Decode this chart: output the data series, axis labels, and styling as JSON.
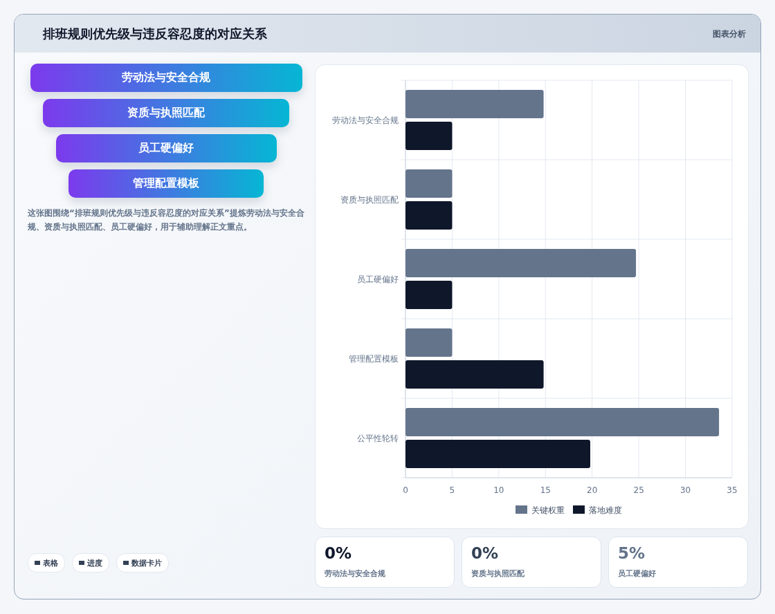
{
  "chart_data": [
    {
      "type": "other",
      "title": "排班规则优先级与违反容忍度的对应关系",
      "categories": [
        "劳动法与安全合规",
        "资质与执照匹配",
        "员工硬偏好",
        "管理配置模板"
      ],
      "annotations": [
        "图表分析",
        "这张图围绕“排班规则优先级与违反容忍度的对应关系”提炼劳动法与安全合规、资质与执照匹配、员工硬偏好，用于辅助理解正文重点。",
        "表格",
        "进度",
        "数据卡片"
      ]
    },
    {
      "type": "bar",
      "orientation": "horizontal",
      "categories": [
        "劳动法与安全合规",
        "资质与执照匹配",
        "员工硬偏好",
        "管理配置模板",
        "公平性轮转"
      ],
      "series": [
        {
          "name": "关键权重",
          "color": "#64748b",
          "values": [
            14.8,
            5,
            24.7,
            5,
            33.6
          ]
        },
        {
          "name": "落地难度",
          "color": "#0f172a",
          "values": [
            5,
            5,
            5,
            14.8,
            19.8
          ]
        }
      ],
      "xlim": [
        0,
        35
      ],
      "xticks": [
        0,
        5,
        10,
        15,
        20,
        25,
        30,
        35
      ],
      "grid": true,
      "legend": "bottom"
    },
    {
      "type": "other",
      "categories": [
        "劳动法与安全合规",
        "资质与执照匹配",
        "员工硬偏好"
      ],
      "value_labels": [
        "0%",
        "0%",
        "5%"
      ]
    }
  ]
}
